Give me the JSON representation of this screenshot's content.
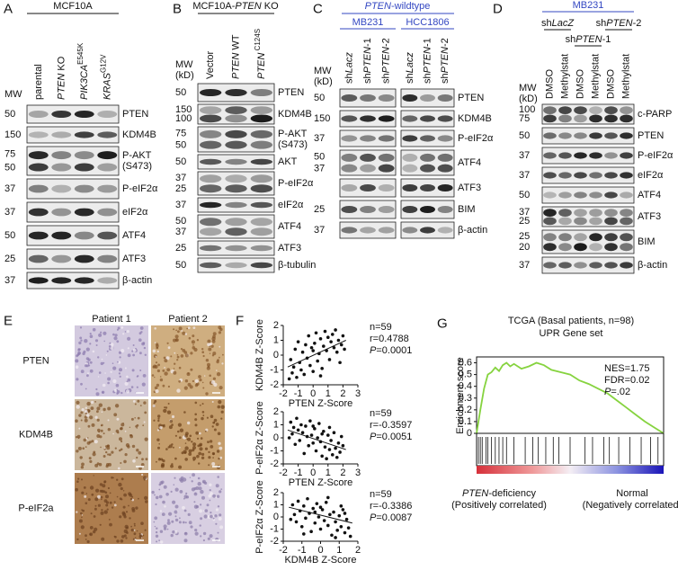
{
  "panel_a": {
    "letter": "A",
    "header": "MCF10A",
    "mw_label": [
      "MW"
    ],
    "lanes": [
      "parental",
      [
        {
          "text": "PTEN",
          "style": "italic"
        },
        {
          "text": " KO"
        }
      ],
      [
        {
          "text": "PIK3CA",
          "style": "italic"
        },
        {
          "text": "E545K",
          "style": "sup"
        }
      ],
      [
        {
          "text": "KRAS",
          "style": "italic"
        },
        {
          "text": "G12V",
          "style": "sup"
        }
      ]
    ],
    "rows": [
      {
        "mw": [
          "50"
        ],
        "protein": [
          "PTEN"
        ]
      },
      {
        "mw": [
          "150"
        ],
        "protein": [
          "KDM4B"
        ]
      },
      {
        "mw": [
          "75",
          "50"
        ],
        "protein": [
          "P-AKT",
          "(S473)"
        ]
      },
      {
        "mw": [
          "37"
        ],
        "protein": [
          "P-eIF2α"
        ]
      },
      {
        "mw": [
          "37"
        ],
        "protein": [
          "eIF2α"
        ]
      },
      {
        "mw": [
          "50"
        ],
        "protein": [
          "ATF4"
        ]
      },
      {
        "mw": [
          "25"
        ],
        "protein": [
          "ATF3"
        ]
      },
      {
        "mw": [
          "37"
        ],
        "protein": [
          "β-actin"
        ]
      }
    ]
  },
  "panel_b": {
    "letter": "B",
    "header": [
      {
        "text": "MCF10A-"
      },
      {
        "text": "PTEN",
        "style": "italic"
      },
      {
        "text": " KO"
      }
    ],
    "mw_label": [
      "MW",
      "(kD)"
    ],
    "lanes": [
      "Vector",
      [
        {
          "text": "PTEN",
          "style": "italic"
        },
        {
          "text": " WT"
        }
      ],
      [
        {
          "text": "PTEN",
          "style": "italic"
        },
        {
          "text": " C124S",
          "style": "sup"
        }
      ]
    ],
    "rows": [
      {
        "mw": [
          "50"
        ],
        "protein": [
          "PTEN"
        ]
      },
      {
        "mw": [
          "150",
          "100"
        ],
        "protein": [
          "KDM4B"
        ]
      },
      {
        "mw": [
          "75",
          "50"
        ],
        "protein": [
          "P-AKT",
          "(S473)"
        ]
      },
      {
        "mw": [
          "50"
        ],
        "protein": [
          "AKT"
        ]
      },
      {
        "mw": [
          "37",
          "25"
        ],
        "protein": [
          "P-eIF2α"
        ]
      },
      {
        "mw": [
          "37"
        ],
        "protein": [
          "eIF2α"
        ]
      },
      {
        "mw": [
          "50",
          "37"
        ],
        "protein": [
          "ATF4"
        ]
      },
      {
        "mw": [
          "25"
        ],
        "protein": [
          "ATF3"
        ]
      },
      {
        "mw": [
          "50"
        ],
        "protein": [
          "β-tubulin"
        ]
      }
    ]
  },
  "panel_c": {
    "letter": "C",
    "header": [
      {
        "text": "PTEN",
        "style": "italic"
      },
      {
        "text": "-wildtype"
      }
    ],
    "mw_label": [
      "MW",
      "(kD)"
    ],
    "groups": [
      {
        "name": "MB231",
        "lanes": [
          [
            {
              "text": "sh"
            },
            {
              "text": "Lacz",
              "style": "italic"
            }
          ],
          [
            {
              "text": "sh"
            },
            {
              "text": "PTEN",
              "style": "italic"
            },
            {
              "text": "-1"
            }
          ],
          [
            {
              "text": "sh"
            },
            {
              "text": "PTEN",
              "style": "italic"
            },
            {
              "text": "-2"
            }
          ]
        ]
      },
      {
        "name": "HCC1806",
        "lanes": [
          [
            {
              "text": "sh"
            },
            {
              "text": "Lacz",
              "style": "italic"
            }
          ],
          [
            {
              "text": "sh"
            },
            {
              "text": "PTEN",
              "style": "italic"
            },
            {
              "text": "-1"
            }
          ],
          [
            {
              "text": "sh"
            },
            {
              "text": "PTEN",
              "style": "italic"
            },
            {
              "text": "-2"
            }
          ]
        ]
      }
    ],
    "rows": [
      {
        "mw": [
          "50"
        ],
        "protein": [
          "PTEN"
        ]
      },
      {
        "mw": [
          "150"
        ],
        "protein": [
          "KDM4B"
        ]
      },
      {
        "mw": [
          "37"
        ],
        "protein": [
          "P-eIF2α"
        ]
      },
      {
        "mw": [
          "50",
          "37"
        ],
        "protein": [
          "ATF4"
        ]
      },
      {
        "mw": [],
        "protein": [
          "ATF3"
        ]
      },
      {
        "mw": [
          "25"
        ],
        "protein": [
          "BIM"
        ]
      },
      {
        "mw": [
          "37"
        ],
        "protein": [
          "β-actin"
        ]
      }
    ]
  },
  "panel_d": {
    "letter": "D",
    "header": "MB231",
    "mw_label": [
      "MW",
      "(kD)"
    ],
    "subgroups": [
      [
        {
          "text": "sh"
        },
        {
          "text": "LacZ",
          "style": "italic"
        }
      ],
      [
        {
          "text": "sh"
        },
        {
          "text": "PTEN",
          "style": "italic"
        },
        {
          "text": "-1"
        }
      ],
      [
        {
          "text": "sh"
        },
        {
          "text": "PTEN",
          "style": "italic"
        },
        {
          "text": "-2"
        }
      ]
    ],
    "lanes": [
      "DMSO",
      "Methylstat",
      "DMSO",
      "Methylstat",
      "DMSO",
      "Methylstat"
    ],
    "rows": [
      {
        "mw": [
          "100",
          "75"
        ],
        "protein": [
          "c-PARP"
        ]
      },
      {
        "mw": [
          "50"
        ],
        "protein": [
          "PTEN"
        ]
      },
      {
        "mw": [
          "37"
        ],
        "protein": [
          "P-eIF2α"
        ]
      },
      {
        "mw": [
          "37"
        ],
        "protein": [
          "eIF2α"
        ]
      },
      {
        "mw": [
          "50"
        ],
        "protein": [
          "ATF4"
        ]
      },
      {
        "mw": [
          "37",
          "25"
        ],
        "protein": [
          "ATF3"
        ]
      },
      {
        "mw": [
          "25",
          "20"
        ],
        "protein": [
          "BIM"
        ]
      },
      {
        "mw": [
          "37"
        ],
        "protein": [
          "β-actin"
        ]
      }
    ]
  },
  "panel_e": {
    "letter": "E",
    "columns": [
      "Patient 1",
      "Patient 2"
    ],
    "rows": [
      "PTEN",
      "KDM4B",
      "P-eIF2a"
    ]
  },
  "panel_f": {
    "letter": "F",
    "plots": [
      {
        "type": "scatter",
        "xlabel": "PTEN Z-Score",
        "ylabel": "KDM4B Z-Score",
        "xlim": [
          -2,
          3
        ],
        "ylim": [
          -2,
          2
        ],
        "xticks": [
          -2,
          -1,
          0,
          1,
          2,
          3
        ],
        "yticks": [
          -2,
          -1,
          0,
          1,
          2
        ],
        "x": [
          -1.5,
          -1.4,
          -1.3,
          -1.2,
          -1.1,
          -1.0,
          -0.9,
          -0.8,
          -0.7,
          -0.6,
          -0.5,
          -0.4,
          -0.3,
          -0.2,
          -0.1,
          0,
          0.1,
          0.2,
          0.3,
          0.4,
          0.5,
          0.6,
          0.7,
          0.8,
          0.9,
          1.0,
          1.1,
          1.2,
          1.3,
          1.4,
          1.5,
          1.6,
          1.7,
          1.8,
          1.9,
          2.0,
          2.1,
          -1.6,
          0.0,
          0.5
        ],
        "y": [
          -0.3,
          -1.2,
          -0.8,
          0.4,
          -1.5,
          0.9,
          -0.5,
          -1.0,
          0.2,
          -1.3,
          0.7,
          -0.2,
          1.3,
          -0.7,
          0.5,
          -1.1,
          0.8,
          1.5,
          -0.4,
          0.1,
          1.1,
          -0.9,
          0.6,
          1.6,
          0.3,
          1.2,
          -0.3,
          0.9,
          1.4,
          0.5,
          1.7,
          0.2,
          1.0,
          -0.5,
          0.7,
          1.3,
          0.4,
          -1.6,
          0.3,
          -1.4
        ],
        "fit": {
          "x": [
            -1.7,
            2.2
          ],
          "y": [
            -0.8,
            1.0
          ]
        },
        "stats": [
          "n=59",
          "r=0.4788",
          [
            {
              "text": "P",
              "style": "italic"
            },
            {
              "text": "=0.0001"
            }
          ]
        ]
      },
      {
        "type": "scatter",
        "xlabel": "PTEN Z-Score",
        "ylabel": "P-eIF2α Z-Score",
        "xlim": [
          -2,
          3
        ],
        "ylim": [
          -2,
          2
        ],
        "xticks": [
          -2,
          -1,
          0,
          1,
          2,
          3
        ],
        "yticks": [
          -2,
          -1,
          0,
          1,
          2
        ],
        "x": [
          -1.5,
          -1.4,
          -1.3,
          -1.2,
          -1.1,
          -1.0,
          -0.9,
          -0.8,
          -0.7,
          -0.6,
          -0.5,
          -0.4,
          -0.3,
          -0.2,
          -0.1,
          0,
          0.1,
          0.2,
          0.3,
          0.4,
          0.5,
          0.6,
          0.7,
          0.8,
          0.9,
          1.0,
          1.1,
          1.2,
          1.3,
          1.4,
          1.5,
          1.6,
          1.7,
          1.8,
          1.9,
          2.0,
          -1.6,
          0.0,
          0.6,
          1.1
        ],
        "y": [
          1.2,
          0.3,
          0.8,
          -0.5,
          1.5,
          0.6,
          -0.2,
          1.0,
          0.4,
          -1.2,
          0.9,
          0.1,
          -0.6,
          1.3,
          0.2,
          -0.4,
          0.7,
          -1.0,
          0.0,
          1.1,
          -0.3,
          -1.4,
          0.5,
          -0.7,
          -1.6,
          0.2,
          -0.9,
          -0.2,
          -1.3,
          0.4,
          -0.8,
          -1.5,
          -0.4,
          -1.1,
          0.1,
          -0.6,
          0.0,
          0.9,
          0.3,
          0.8
        ],
        "fit": {
          "x": [
            -1.7,
            2.2
          ],
          "y": [
            0.6,
            -0.9
          ]
        },
        "stats": [
          "n=59",
          "r=-0.3597",
          [
            {
              "text": "P",
              "style": "italic"
            },
            {
              "text": "=0.0051"
            }
          ]
        ]
      },
      {
        "type": "scatter",
        "xlabel": "KDM4B Z-Score",
        "ylabel": "P-eIF2α Z-Score",
        "xlim": [
          -2,
          2
        ],
        "ylim": [
          -2,
          2
        ],
        "xticks": [
          -2,
          -1,
          0,
          1,
          2
        ],
        "yticks": [
          -2,
          -1,
          0,
          1,
          2
        ],
        "x": [
          -1.5,
          -1.4,
          -1.3,
          -1.2,
          -1.1,
          -1.0,
          -0.9,
          -0.8,
          -0.7,
          -0.6,
          -0.5,
          -0.4,
          -0.3,
          -0.2,
          -0.1,
          0,
          0.1,
          0.2,
          0.3,
          0.4,
          0.5,
          0.6,
          0.7,
          0.8,
          0.9,
          1.0,
          1.1,
          1.2,
          1.3,
          1.4,
          1.5,
          1.6,
          -1.6,
          -0.9,
          0.0,
          0.4,
          1.1,
          -0.3,
          0.8,
          1.3
        ],
        "y": [
          1.0,
          0.2,
          -0.4,
          1.3,
          0.5,
          -0.8,
          0.9,
          -0.1,
          1.5,
          0.3,
          -1.2,
          0.7,
          -0.5,
          1.1,
          0.0,
          -1.0,
          0.6,
          -0.3,
          1.2,
          -0.7,
          0.2,
          -1.5,
          0.4,
          -0.4,
          -1.1,
          0.1,
          -0.8,
          0.6,
          -1.3,
          -0.2,
          -0.9,
          -1.6,
          -0.2,
          -1.4,
          0.8,
          1.6,
          0.9,
          0.4,
          -1.7,
          0.3
        ],
        "fit": {
          "x": [
            -1.7,
            1.7
          ],
          "y": [
            0.8,
            -0.5
          ]
        },
        "stats": [
          "n=59",
          "r=-0.3386",
          [
            {
              "text": "P",
              "style": "italic"
            },
            {
              "text": "=0.0087"
            }
          ]
        ]
      }
    ]
  },
  "panel_g": {
    "letter": "G",
    "type": "line",
    "title": [
      "TCGA (Basal patients, n=98)",
      "UPR Gene set"
    ],
    "ylabel": "Enrichment score",
    "ylim": [
      0,
      0.65
    ],
    "yticks": [
      0,
      0.1,
      0.2,
      0.3,
      0.4,
      0.5,
      0.6
    ],
    "color": "#86d33f",
    "x": [
      0,
      0.02,
      0.04,
      0.06,
      0.08,
      0.1,
      0.12,
      0.14,
      0.16,
      0.18,
      0.2,
      0.24,
      0.28,
      0.32,
      0.36,
      0.4,
      0.45,
      0.5,
      0.55,
      0.6,
      0.65,
      0.7,
      0.75,
      0.8,
      0.85,
      0.9,
      0.95,
      1
    ],
    "values": [
      0,
      0.2,
      0.38,
      0.5,
      0.52,
      0.56,
      0.53,
      0.58,
      0.6,
      0.57,
      0.59,
      0.55,
      0.57,
      0.6,
      0.58,
      0.54,
      0.52,
      0.5,
      0.45,
      0.42,
      0.38,
      0.34,
      0.28,
      0.22,
      0.16,
      0.1,
      0.05,
      0
    ],
    "hits": [
      0.01,
      0.02,
      0.03,
      0.05,
      0.06,
      0.08,
      0.1,
      0.12,
      0.14,
      0.16,
      0.2,
      0.26,
      0.3,
      0.33,
      0.37,
      0.41,
      0.44,
      0.5,
      0.58,
      0.62,
      0.68,
      0.71,
      0.76,
      0.82,
      0.88,
      0.93,
      0.97
    ],
    "stats": [
      "NES=1.75",
      "FDR=0.02",
      [
        {
          "text": "P",
          "style": "italic"
        },
        {
          "text": "=.02"
        }
      ]
    ],
    "left_label": [
      [
        {
          "text": "PTEN",
          "style": "italic"
        },
        {
          "text": "-deficiency"
        }
      ],
      "(Positively correlated)"
    ],
    "right_label": [
      "Normal",
      "(Negatively correlated)"
    ]
  }
}
